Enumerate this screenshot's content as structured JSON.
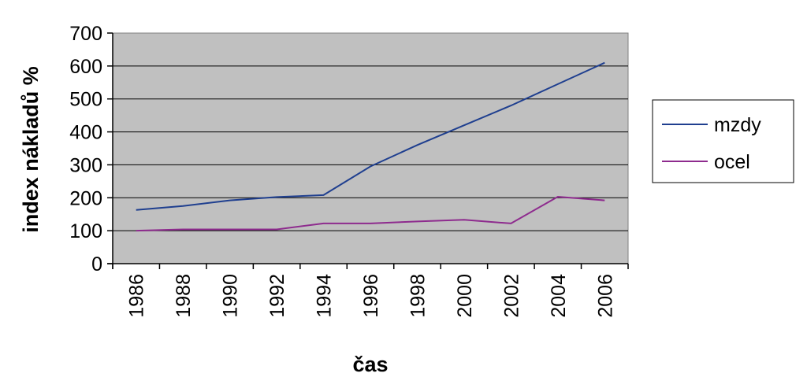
{
  "chart_data": {
    "type": "line",
    "xlabel": "čas",
    "ylabel": "index nákladů %",
    "ylim": [
      0,
      700
    ],
    "y_ticks": [
      0,
      100,
      200,
      300,
      400,
      500,
      600,
      700
    ],
    "x_tick_labels": [
      "1986",
      "1988",
      "1990",
      "1992",
      "1994",
      "1996",
      "1998",
      "2000",
      "2002",
      "2004",
      "2006"
    ],
    "x": [
      1986,
      1988,
      1990,
      1992,
      1994,
      1996,
      1998,
      2000,
      2002,
      2004,
      2006
    ],
    "series": [
      {
        "name": "mzdy",
        "color": "#1f3f8f",
        "values": [
          163,
          175,
          192,
          202,
          208,
          295,
          360,
          420,
          480,
          545,
          610
        ]
      },
      {
        "name": "ocel",
        "color": "#8e2b8e",
        "values": [
          100,
          104,
          104,
          104,
          122,
          122,
          128,
          133,
          122,
          203,
          192
        ]
      }
    ],
    "grid": true,
    "legend_position": "right",
    "plot_background": "#c0c0c0"
  }
}
